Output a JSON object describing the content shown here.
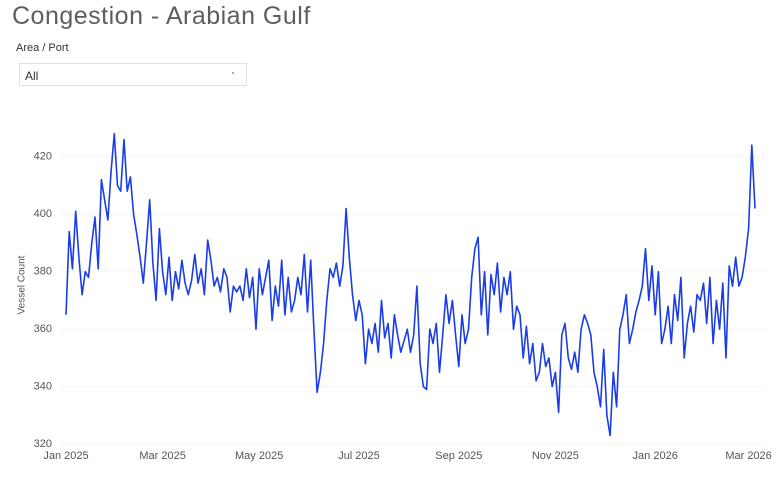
{
  "header": {
    "title": "Congestion - Arabian Gulf",
    "filter_label": "Area / Port",
    "filter_value": "All"
  },
  "chart_data": {
    "type": "line",
    "y_label": "Vessel Count",
    "color": "#1a3de8",
    "ylim": [
      319,
      430
    ],
    "yticks": [
      320,
      340,
      360,
      380,
      400,
      420
    ],
    "grid": true,
    "categories": [
      "Jan 2025",
      null,
      null,
      null,
      null,
      null,
      null,
      null,
      null,
      null,
      null,
      null,
      null,
      null,
      null,
      null,
      null,
      null,
      null,
      null,
      null,
      null,
      null,
      null,
      null,
      null,
      null,
      null,
      null,
      null,
      "Mar 2025",
      null,
      null,
      null,
      null,
      null,
      null,
      null,
      null,
      null,
      null,
      null,
      null,
      null,
      null,
      null,
      null,
      null,
      null,
      null,
      null,
      null,
      null,
      null,
      null,
      null,
      null,
      null,
      null,
      null,
      "May 2025",
      null,
      null,
      null,
      null,
      null,
      null,
      null,
      null,
      null,
      null,
      null,
      null,
      null,
      null,
      null,
      null,
      null,
      null,
      null,
      null,
      null,
      null,
      null,
      null,
      null,
      null,
      null,
      null,
      null,
      null,
      "Jul 2025",
      null,
      null,
      null,
      null,
      null,
      null,
      null,
      null,
      null,
      null,
      null,
      null,
      null,
      null,
      null,
      null,
      null,
      null,
      null,
      null,
      null,
      null,
      null,
      null,
      null,
      null,
      null,
      null,
      null,
      null,
      "Sep 2025",
      null,
      null,
      null,
      null,
      null,
      null,
      null,
      null,
      null,
      null,
      null,
      null,
      null,
      null,
      null,
      null,
      null,
      null,
      null,
      null,
      null,
      null,
      null,
      null,
      null,
      null,
      null,
      null,
      null,
      "Nov 2025",
      null,
      null,
      null,
      null,
      null,
      null,
      null,
      null,
      null,
      null,
      null,
      null,
      null,
      null,
      null,
      null,
      null,
      null,
      null,
      null,
      null,
      null,
      null,
      null,
      null,
      null,
      null,
      null,
      null,
      null,
      "Jan 2026",
      null,
      null,
      null,
      null,
      null,
      null,
      null,
      null,
      null,
      null,
      null,
      null,
      null,
      null,
      null,
      null,
      null,
      null,
      null,
      null,
      null,
      null,
      null,
      null,
      null,
      null,
      null,
      null,
      "Mar 2026",
      null,
      null
    ],
    "values": [
      365,
      394,
      381,
      401,
      385,
      372,
      380,
      378,
      390,
      399,
      381,
      412,
      405,
      398,
      415,
      428,
      410,
      408,
      426,
      408,
      413,
      400,
      393,
      385,
      376,
      390,
      405,
      383,
      370,
      395,
      380,
      372,
      385,
      370,
      380,
      374,
      384,
      376,
      372,
      377,
      386,
      376,
      381,
      372,
      391,
      384,
      375,
      378,
      373,
      381,
      378,
      366,
      375,
      373,
      375,
      370,
      381,
      371,
      378,
      360,
      381,
      372,
      378,
      384,
      363,
      375,
      368,
      384,
      365,
      378,
      366,
      370,
      378,
      372,
      386,
      366,
      384,
      360,
      338,
      345,
      355,
      370,
      381,
      378,
      383,
      375,
      382,
      402,
      385,
      372,
      363,
      370,
      365,
      348,
      360,
      355,
      362,
      352,
      370,
      357,
      362,
      350,
      365,
      358,
      352,
      356,
      360,
      352,
      358,
      375,
      348,
      340,
      339,
      360,
      355,
      362,
      345,
      358,
      372,
      362,
      370,
      358,
      347,
      365,
      355,
      360,
      378,
      388,
      392,
      365,
      380,
      358,
      379,
      372,
      383,
      366,
      378,
      372,
      380,
      360,
      368,
      365,
      350,
      361,
      348,
      355,
      342,
      345,
      355,
      347,
      350,
      340,
      345,
      331,
      358,
      362,
      350,
      346,
      352,
      345,
      360,
      365,
      362,
      358,
      345,
      340,
      333,
      353,
      330,
      323,
      345,
      333,
      360,
      365,
      372,
      355,
      360,
      366,
      370,
      375,
      388,
      370,
      382,
      365,
      380,
      355,
      360,
      368,
      355,
      372,
      363,
      378,
      350,
      362,
      368,
      359,
      372,
      370,
      376,
      362,
      378,
      355,
      370,
      360,
      376,
      350,
      382,
      375,
      385,
      375,
      378,
      385,
      395,
      424,
      402
    ]
  }
}
